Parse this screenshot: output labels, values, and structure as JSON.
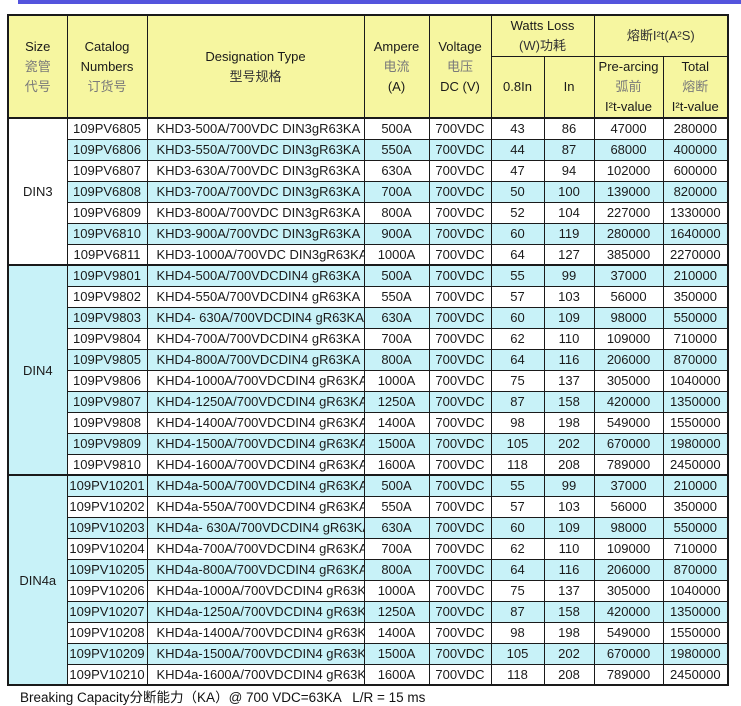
{
  "colors": {
    "header_bg": "#F6F6A0",
    "row_alt_bg": "#C8F2F8",
    "row_bg": "#FFFFFF",
    "top_rule": "#5454DD",
    "border": "#1a1a1a"
  },
  "footer": {
    "text": "Breaking Capacity分断能力（KA）@ 700 VDC=63KA   L/R = 15 ms"
  },
  "table": {
    "header": {
      "size": {
        "l1": "Size",
        "l2": "瓷管",
        "l3": "代号"
      },
      "catalog": {
        "l1": "Catalog",
        "l2": "Numbers",
        "l3": "订货号"
      },
      "designation": {
        "l1": "Designation Type",
        "l2": "型号规格"
      },
      "ampere": {
        "l1": "Ampere",
        "l2": "电流",
        "l3": "(A)"
      },
      "voltage": {
        "l1": "Voltage",
        "l2": "电压",
        "l3": "DC (V)"
      },
      "watts": {
        "l1": "Watts Loss",
        "l2": "(W)功耗",
        "sub1": "0.8In",
        "sub2": "In"
      },
      "i2t": {
        "l1": "熔断I²t(A²S)",
        "pre": {
          "l1": "Pre-arcing",
          "l2": "弧前",
          "l3": "I²t-value"
        },
        "total": {
          "l1": "Total",
          "l2": "熔断",
          "l3": "I²t-value"
        }
      }
    },
    "column_names": [
      "catalog-number",
      "designation-type",
      "ampere-rating",
      "voltage-rating",
      "watts-loss-0-8in",
      "watts-loss-in",
      "prearcing-i2t-value",
      "total-i2t-value"
    ],
    "groups": [
      {
        "size": "DIN3",
        "rows": [
          [
            "109PV6805",
            "KHD3-500A/700VDC DIN3gR63KA",
            "500A",
            "700VDC",
            "43",
            "86",
            "47000",
            "280000"
          ],
          [
            "109PV6806",
            "KHD3-550A/700VDC DIN3gR63KA",
            "550A",
            "700VDC",
            "44",
            "87",
            "68000",
            "400000"
          ],
          [
            "109PV6807",
            "KHD3-630A/700VDC DIN3gR63KA",
            "630A",
            "700VDC",
            "47",
            "94",
            "102000",
            "600000"
          ],
          [
            "109PV6808",
            "KHD3-700A/700VDC DIN3gR63KA",
            "700A",
            "700VDC",
            "50",
            "100",
            "139000",
            "820000"
          ],
          [
            "109PV6809",
            "KHD3-800A/700VDC DIN3gR63KA",
            "800A",
            "700VDC",
            "52",
            "104",
            "227000",
            "1330000"
          ],
          [
            "109PV6810",
            "KHD3-900A/700VDC DIN3gR63KA",
            "900A",
            "700VDC",
            "60",
            "119",
            "280000",
            "1640000"
          ],
          [
            "109PV6811",
            "KHD3-1000A/700VDC DIN3gR63KA",
            "1000A",
            "700VDC",
            "64",
            "127",
            "385000",
            "2270000"
          ]
        ]
      },
      {
        "size": "DIN4",
        "rows": [
          [
            "109PV9801",
            "KHD4-500A/700VDCDIN4 gR63KA",
            "500A",
            "700VDC",
            "55",
            "99",
            "37000",
            "210000"
          ],
          [
            "109PV9802",
            "KHD4-550A/700VDCDIN4 gR63KA",
            "550A",
            "700VDC",
            "57",
            "103",
            "56000",
            "350000"
          ],
          [
            "109PV9803",
            "KHD4- 630A/700VDCDIN4 gR63KA",
            "630A",
            "700VDC",
            "60",
            "109",
            "98000",
            "550000"
          ],
          [
            "109PV9804",
            "KHD4-700A/700VDCDIN4 gR63KA",
            "700A",
            "700VDC",
            "62",
            "110",
            "109000",
            "710000"
          ],
          [
            "109PV9805",
            "KHD4-800A/700VDCDIN4 gR63KA",
            "800A",
            "700VDC",
            "64",
            "116",
            "206000",
            "870000"
          ],
          [
            "109PV9806",
            "KHD4-1000A/700VDCDIN4 gR63KA",
            "1000A",
            "700VDC",
            "75",
            "137",
            "305000",
            "1040000"
          ],
          [
            "109PV9807",
            "KHD4-1250A/700VDCDIN4 gR63KA",
            "1250A",
            "700VDC",
            "87",
            "158",
            "420000",
            "1350000"
          ],
          [
            "109PV9808",
            "KHD4-1400A/700VDCDIN4 gR63KA",
            "1400A",
            "700VDC",
            "98",
            "198",
            "549000",
            "1550000"
          ],
          [
            "109PV9809",
            "KHD4-1500A/700VDCDIN4 gR63KA",
            "1500A",
            "700VDC",
            "105",
            "202",
            "670000",
            "1980000"
          ],
          [
            "109PV9810",
            "KHD4-1600A/700VDCDIN4 gR63KA",
            "1600A",
            "700VDC",
            "118",
            "208",
            "789000",
            "2450000"
          ]
        ]
      },
      {
        "size": "DIN4a",
        "rows": [
          [
            "109PV10201",
            "KHD4a-500A/700VDCDIN4 gR63KA",
            "500A",
            "700VDC",
            "55",
            "99",
            "37000",
            "210000"
          ],
          [
            "109PV10202",
            "KHD4a-550A/700VDCDIN4 gR63KA",
            "550A",
            "700VDC",
            "57",
            "103",
            "56000",
            "350000"
          ],
          [
            "109PV10203",
            "KHD4a- 630A/700VDCDIN4 gR63KA",
            "630A",
            "700VDC",
            "60",
            "109",
            "98000",
            "550000"
          ],
          [
            "109PV10204",
            "KHD4a-700A/700VDCDIN4 gR63KA",
            "700A",
            "700VDC",
            "62",
            "110",
            "109000",
            "710000"
          ],
          [
            "109PV10205",
            "KHD4a-800A/700VDCDIN4 gR63KA",
            "800A",
            "700VDC",
            "64",
            "116",
            "206000",
            "870000"
          ],
          [
            "109PV10206",
            "KHD4a-1000A/700VDCDIN4 gR63KA",
            "1000A",
            "700VDC",
            "75",
            "137",
            "305000",
            "1040000"
          ],
          [
            "109PV10207",
            "KHD4a-1250A/700VDCDIN4 gR63KA",
            "1250A",
            "700VDC",
            "87",
            "158",
            "420000",
            "1350000"
          ],
          [
            "109PV10208",
            "KHD4a-1400A/700VDCDIN4 gR63KA",
            "1400A",
            "700VDC",
            "98",
            "198",
            "549000",
            "1550000"
          ],
          [
            "109PV10209",
            "KHD4a-1500A/700VDCDIN4 gR63KA",
            "1500A",
            "700VDC",
            "105",
            "202",
            "670000",
            "1980000"
          ],
          [
            "109PV10210",
            "KHD4a-1600A/700VDCDIN4 gR63KA",
            "1600A",
            "700VDC",
            "118",
            "208",
            "789000",
            "2450000"
          ]
        ]
      }
    ]
  }
}
